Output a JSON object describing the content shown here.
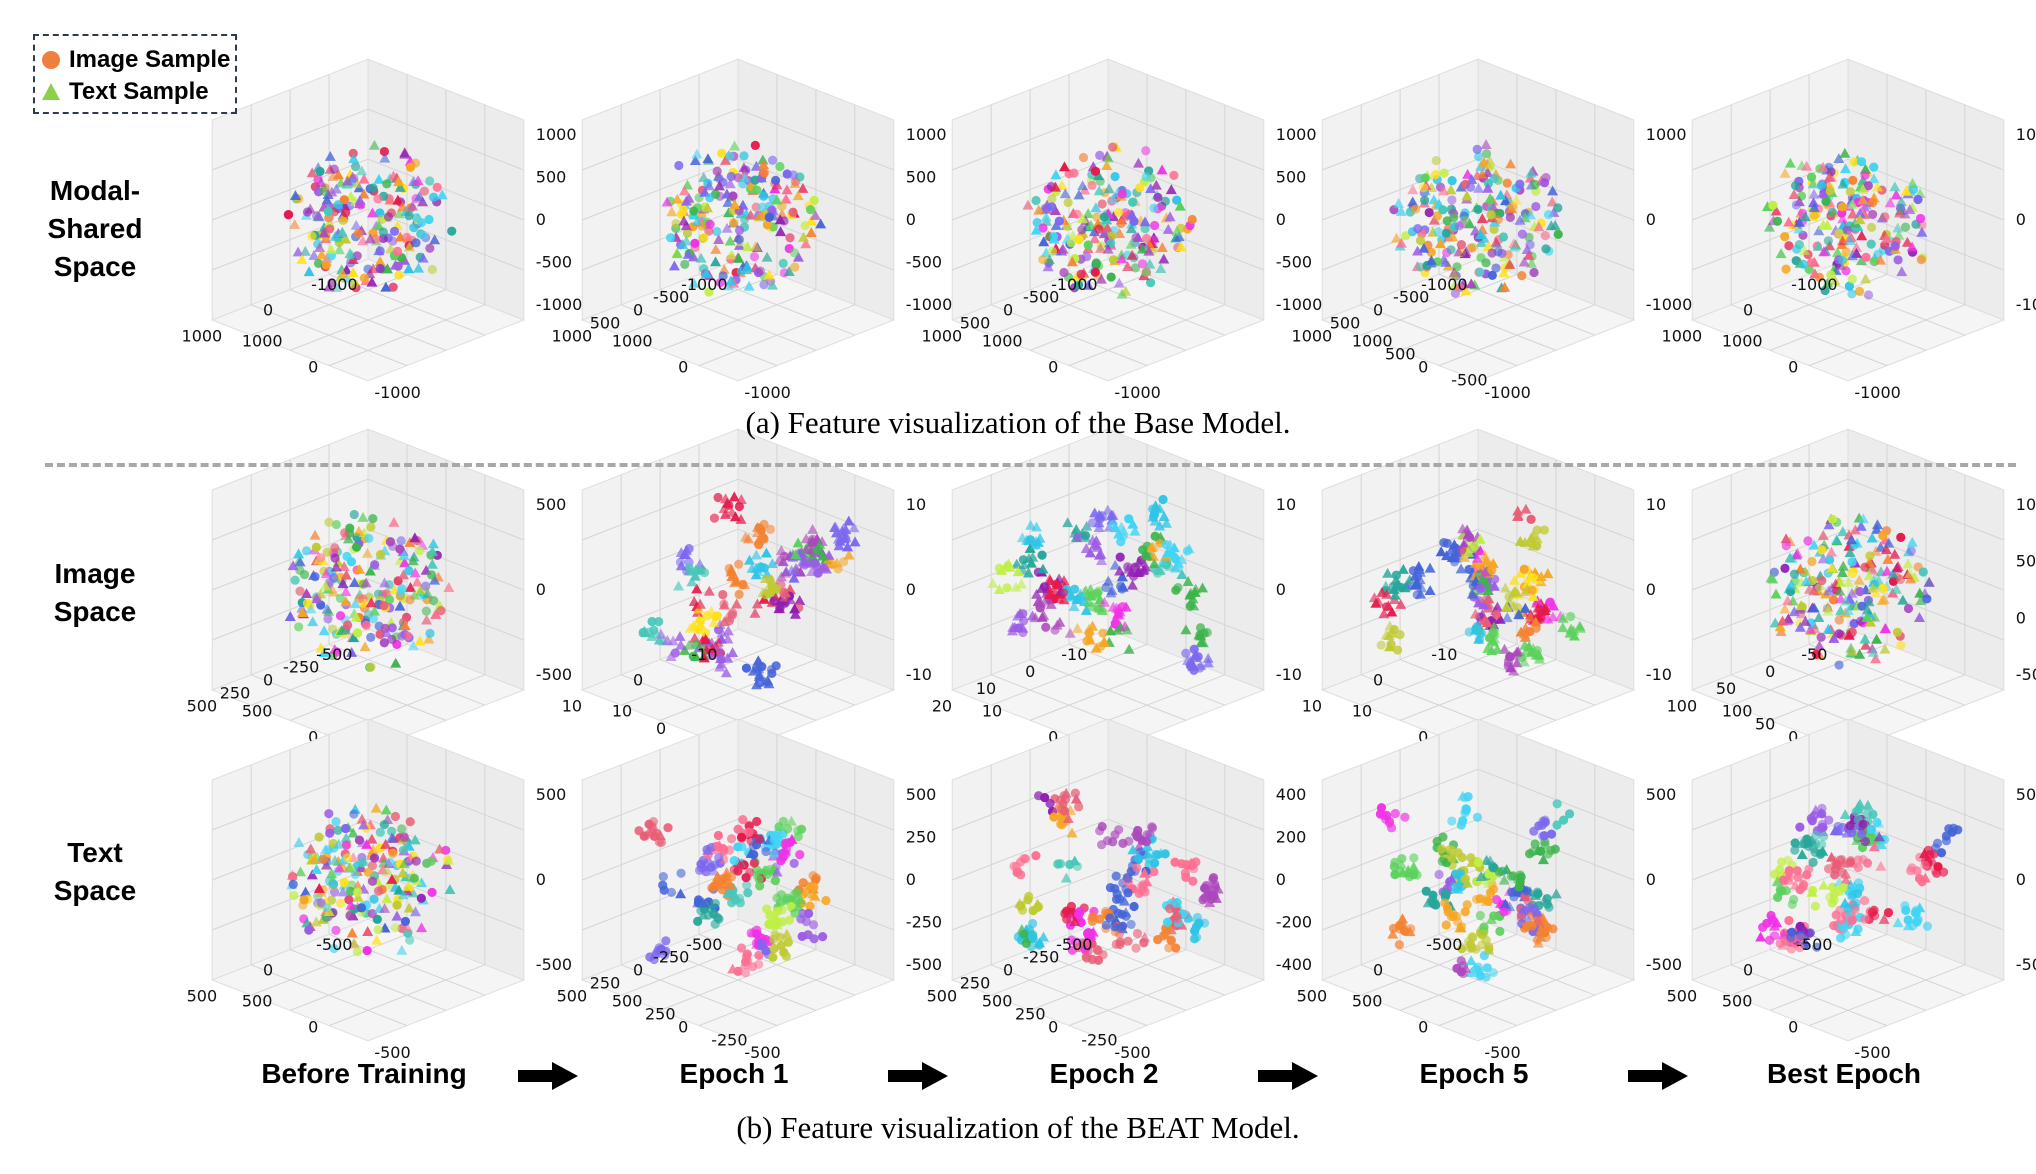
{
  "legend": {
    "image_label": "Image Sample",
    "text_label": "Text Sample",
    "image_color": "#ee7f3f",
    "text_color": "#8ccf4d"
  },
  "row_labels": {
    "modal_shared": "Modal-\nShared\nSpace",
    "image_space": "Image\nSpace",
    "text_space": "Text\nSpace"
  },
  "captions": {
    "a": "(a) Feature visualization of the Base Model.",
    "b": "(b) Feature visualization of the BEAT Model."
  },
  "stages": [
    "Before Training",
    "Epoch 1",
    "Epoch 2",
    "Epoch 5",
    "Best Epoch"
  ],
  "chart_data": [
    {
      "type": "scatter",
      "row": "modal_shared",
      "stage": "Before Training",
      "x_ticks": [
        "-1000",
        "0",
        "1000"
      ],
      "y_ticks": [
        "-1000",
        "0",
        "1000"
      ],
      "z_ticks": [
        "1000",
        "500",
        "0",
        "-500",
        "-1000"
      ],
      "marker_mix": "mixed",
      "shape": "sphere"
    },
    {
      "type": "scatter",
      "row": "modal_shared",
      "stage": "Epoch 1",
      "x_ticks": [
        "-1000",
        "-500",
        "0",
        "500",
        "1000"
      ],
      "y_ticks": [
        "-1000",
        "0",
        "1000"
      ],
      "z_ticks": [
        "1000",
        "500",
        "0",
        "-500",
        "-1000"
      ],
      "marker_mix": "mixed",
      "shape": "sphere"
    },
    {
      "type": "scatter",
      "row": "modal_shared",
      "stage": "Epoch 2",
      "x_ticks": [
        "-1000",
        "-500",
        "0",
        "500",
        "1000"
      ],
      "y_ticks": [
        "-1000",
        "0",
        "1000"
      ],
      "z_ticks": [
        "1000",
        "500",
        "0",
        "-500",
        "-1000"
      ],
      "marker_mix": "mixed",
      "shape": "sphere"
    },
    {
      "type": "scatter",
      "row": "modal_shared",
      "stage": "Epoch 5",
      "x_ticks": [
        "-1000",
        "-500",
        "0",
        "500",
        "1000"
      ],
      "y_ticks": [
        "-1000",
        "-500",
        "0",
        "500",
        "1000"
      ],
      "z_ticks": [
        "1000",
        "0",
        "-1000"
      ],
      "marker_mix": "mixed",
      "shape": "sphere"
    },
    {
      "type": "scatter",
      "row": "modal_shared",
      "stage": "Best Epoch",
      "x_ticks": [
        "-1000",
        "0",
        "1000"
      ],
      "y_ticks": [
        "-1000",
        "0",
        "1000"
      ],
      "z_ticks": [
        "1000",
        "0",
        "-1000"
      ],
      "marker_mix": "mixed",
      "shape": "sphere"
    },
    {
      "type": "scatter",
      "row": "image_space",
      "stage": "Before Training",
      "x_ticks": [
        "-500",
        "-250",
        "0",
        "250",
        "500"
      ],
      "y_ticks": [
        "-500",
        "0",
        "500"
      ],
      "z_ticks": [
        "500",
        "0",
        "-500"
      ],
      "marker_mix": "mixed",
      "shape": "sphere"
    },
    {
      "type": "scatter",
      "row": "image_space",
      "stage": "Epoch 1",
      "x_ticks": [
        "-10",
        "0",
        "10"
      ],
      "y_ticks": [
        "-20",
        "-10",
        "0",
        "10"
      ],
      "z_ticks": [
        "10",
        "0",
        "-10"
      ],
      "marker_mix": "tri_heavy",
      "shape": "clusters"
    },
    {
      "type": "scatter",
      "row": "image_space",
      "stage": "Epoch 2",
      "x_ticks": [
        "-10",
        "0",
        "10",
        "20"
      ],
      "y_ticks": [
        "-10",
        "0",
        "10"
      ],
      "z_ticks": [
        "10",
        "0",
        "-10"
      ],
      "marker_mix": "tri_heavy",
      "shape": "clusters"
    },
    {
      "type": "scatter",
      "row": "image_space",
      "stage": "Epoch 5",
      "x_ticks": [
        "-10",
        "0",
        "10"
      ],
      "y_ticks": [
        "-10",
        "0",
        "10"
      ],
      "z_ticks": [
        "10",
        "0",
        "-10"
      ],
      "marker_mix": "tri_heavy",
      "shape": "clusters"
    },
    {
      "type": "scatter",
      "row": "image_space",
      "stage": "Best Epoch",
      "x_ticks": [
        "-50",
        "0",
        "50",
        "100"
      ],
      "y_ticks": [
        "-100",
        "-50",
        "0",
        "50",
        "100"
      ],
      "z_ticks": [
        "100",
        "50",
        "0",
        "-50"
      ],
      "marker_mix": "tri_heavy",
      "shape": "sphere"
    },
    {
      "type": "scatter",
      "row": "text_space",
      "stage": "Before Training",
      "x_ticks": [
        "-500",
        "0",
        "500"
      ],
      "y_ticks": [
        "-500",
        "0",
        "500"
      ],
      "z_ticks": [
        "500",
        "0",
        "-500"
      ],
      "marker_mix": "mixed",
      "shape": "sphere"
    },
    {
      "type": "scatter",
      "row": "text_space",
      "stage": "Epoch 1",
      "x_ticks": [
        "-500",
        "-250",
        "0",
        "250",
        "500"
      ],
      "y_ticks": [
        "-500",
        "-250",
        "0",
        "250",
        "500"
      ],
      "z_ticks": [
        "500",
        "250",
        "0",
        "-250",
        "-500"
      ],
      "marker_mix": "dot_heavy",
      "shape": "clusters"
    },
    {
      "type": "scatter",
      "row": "text_space",
      "stage": "Epoch 2",
      "x_ticks": [
        "-500",
        "-250",
        "0",
        "250",
        "500"
      ],
      "y_ticks": [
        "-500",
        "-250",
        "0",
        "250",
        "500"
      ],
      "z_ticks": [
        "400",
        "200",
        "0",
        "-200",
        "-400"
      ],
      "marker_mix": "dot_heavy",
      "shape": "clusters"
    },
    {
      "type": "scatter",
      "row": "text_space",
      "stage": "Epoch 5",
      "x_ticks": [
        "-500",
        "0",
        "500"
      ],
      "y_ticks": [
        "-500",
        "0",
        "500"
      ],
      "z_ticks": [
        "500",
        "0",
        "-500"
      ],
      "marker_mix": "dot_heavy",
      "shape": "clusters"
    },
    {
      "type": "scatter",
      "row": "text_space",
      "stage": "Best Epoch",
      "x_ticks": [
        "-500",
        "0",
        "500"
      ],
      "y_ticks": [
        "-500",
        "0",
        "500"
      ],
      "z_ticks": [
        "500",
        "0",
        "-500"
      ],
      "marker_mix": "dot_heavy",
      "shape": "clusters"
    }
  ]
}
